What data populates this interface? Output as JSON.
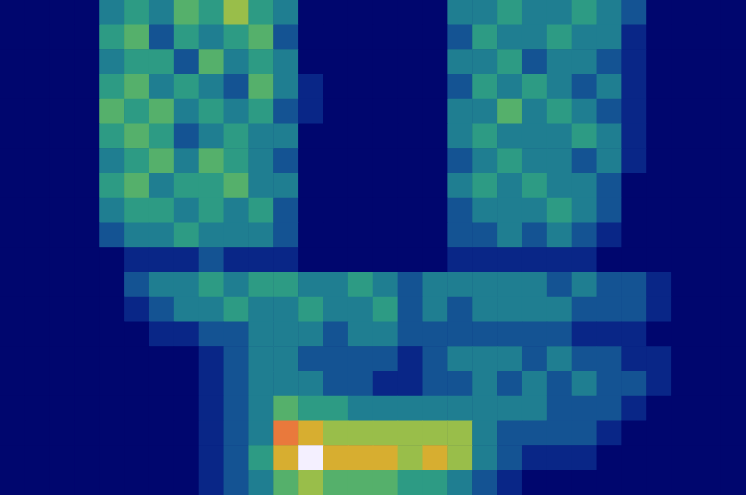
{
  "chart_data": {
    "type": "heatmap",
    "tick_labels": false,
    "zlim": [
      0,
      9
    ],
    "cells": [
      [
        0,
        0,
        0,
        0,
        3,
        4,
        3,
        5,
        4,
        6,
        4,
        3,
        0,
        0,
        0,
        0,
        0,
        0,
        3,
        3,
        4,
        3,
        3,
        4,
        3,
        2,
        0,
        0,
        0,
        0
      ],
      [
        0,
        0,
        0,
        0,
        4,
        5,
        2,
        4,
        3,
        4,
        5,
        2,
        0,
        0,
        0,
        0,
        0,
        0,
        2,
        4,
        3,
        3,
        4,
        3,
        3,
        1,
        0,
        0,
        0,
        0
      ],
      [
        0,
        0,
        0,
        0,
        3,
        4,
        4,
        2,
        5,
        3,
        4,
        3,
        0,
        0,
        0,
        0,
        0,
        0,
        3,
        3,
        4,
        2,
        3,
        3,
        2,
        1,
        0,
        0,
        0,
        0
      ],
      [
        0,
        0,
        0,
        0,
        4,
        5,
        3,
        4,
        3,
        2,
        5,
        3,
        1,
        0,
        0,
        0,
        0,
        0,
        2,
        4,
        3,
        4,
        3,
        2,
        3,
        1,
        0,
        0,
        0,
        0
      ],
      [
        0,
        0,
        0,
        0,
        5,
        4,
        5,
        3,
        4,
        3,
        4,
        2,
        1,
        0,
        0,
        0,
        0,
        0,
        3,
        3,
        5,
        3,
        4,
        3,
        2,
        1,
        0,
        0,
        0,
        0
      ],
      [
        0,
        0,
        0,
        0,
        4,
        5,
        4,
        2,
        3,
        4,
        3,
        3,
        0,
        0,
        0,
        0,
        0,
        0,
        3,
        4,
        3,
        3,
        3,
        4,
        3,
        1,
        0,
        0,
        0,
        0
      ],
      [
        0,
        0,
        0,
        0,
        3,
        4,
        5,
        3,
        5,
        4,
        3,
        2,
        0,
        0,
        0,
        0,
        0,
        0,
        2,
        3,
        4,
        3,
        3,
        2,
        3,
        1,
        0,
        0,
        0,
        0
      ],
      [
        0,
        0,
        0,
        0,
        4,
        5,
        3,
        4,
        4,
        5,
        3,
        3,
        0,
        0,
        0,
        0,
        0,
        0,
        3,
        4,
        3,
        4,
        3,
        3,
        2,
        0,
        0,
        0,
        0,
        0
      ],
      [
        0,
        0,
        0,
        0,
        3,
        4,
        4,
        3,
        4,
        3,
        4,
        2,
        0,
        0,
        0,
        0,
        0,
        0,
        2,
        3,
        3,
        3,
        4,
        3,
        2,
        0,
        0,
        0,
        0,
        0
      ],
      [
        0,
        0,
        0,
        0,
        2,
        3,
        3,
        4,
        3,
        3,
        3,
        2,
        0,
        0,
        0,
        0,
        0,
        0,
        2,
        2,
        3,
        2,
        3,
        2,
        1,
        0,
        0,
        0,
        0,
        0
      ],
      [
        0,
        0,
        0,
        0,
        0,
        1,
        1,
        1,
        2,
        1,
        1,
        1,
        0,
        0,
        0,
        0,
        0,
        0,
        1,
        1,
        1,
        1,
        1,
        1,
        0,
        0,
        0,
        0,
        0,
        0
      ],
      [
        0,
        0,
        0,
        0,
        0,
        2,
        3,
        3,
        4,
        3,
        4,
        4,
        3,
        3,
        4,
        3,
        2,
        3,
        3,
        3,
        3,
        3,
        2,
        3,
        2,
        2,
        1,
        0,
        0,
        0
      ],
      [
        0,
        0,
        0,
        0,
        0,
        1,
        2,
        3,
        3,
        4,
        3,
        3,
        4,
        3,
        3,
        4,
        2,
        3,
        2,
        3,
        3,
        3,
        3,
        2,
        2,
        2,
        1,
        0,
        0,
        0
      ],
      [
        0,
        0,
        0,
        0,
        0,
        0,
        1,
        1,
        2,
        2,
        3,
        3,
        3,
        2,
        3,
        3,
        2,
        2,
        2,
        2,
        2,
        2,
        2,
        1,
        1,
        1,
        0,
        0,
        0,
        0
      ],
      [
        0,
        0,
        0,
        0,
        0,
        0,
        0,
        0,
        1,
        2,
        3,
        3,
        2,
        2,
        2,
        2,
        1,
        2,
        3,
        3,
        3,
        2,
        3,
        2,
        2,
        1,
        1,
        0,
        0,
        0
      ],
      [
        0,
        0,
        0,
        0,
        0,
        0,
        0,
        0,
        1,
        2,
        3,
        3,
        3,
        2,
        2,
        1,
        1,
        2,
        2,
        3,
        2,
        3,
        2,
        3,
        2,
        2,
        1,
        0,
        0,
        0
      ],
      [
        0,
        0,
        0,
        0,
        0,
        0,
        0,
        0,
        1,
        2,
        3,
        5,
        4,
        4,
        3,
        3,
        3,
        3,
        3,
        3,
        3,
        3,
        2,
        2,
        2,
        1,
        0,
        0,
        0,
        0
      ],
      [
        0,
        0,
        0,
        0,
        0,
        0,
        0,
        0,
        1,
        2,
        3,
        8,
        7,
        6,
        6,
        6,
        6,
        6,
        6,
        3,
        2,
        2,
        2,
        2,
        1,
        0,
        0,
        0,
        0,
        0
      ],
      [
        0,
        0,
        0,
        0,
        0,
        0,
        0,
        0,
        1,
        2,
        4,
        7,
        9,
        7,
        7,
        7,
        6,
        7,
        6,
        3,
        2,
        1,
        1,
        1,
        0,
        0,
        0,
        0,
        0,
        0
      ],
      [
        0,
        0,
        0,
        0,
        0,
        0,
        0,
        0,
        1,
        2,
        3,
        5,
        6,
        5,
        5,
        5,
        4,
        4,
        3,
        2,
        1,
        0,
        0,
        0,
        0,
        0,
        0,
        0,
        0,
        0
      ]
    ]
  }
}
